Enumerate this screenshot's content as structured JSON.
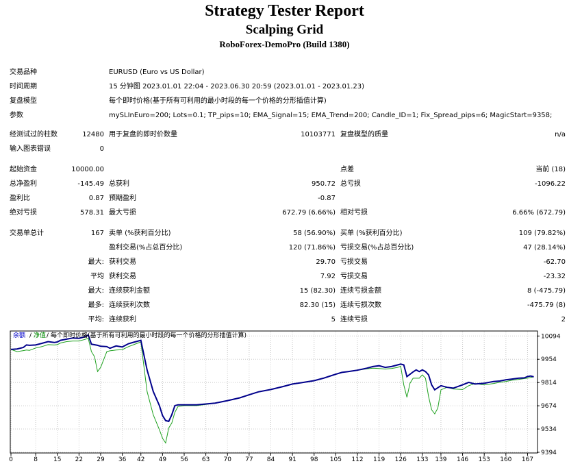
{
  "header": {
    "title": "Strategy Tester Report",
    "ea_name": "Scalping Grid",
    "server": "RoboForex-DemoPro (Build 1380)"
  },
  "info": {
    "symbol_label": "交易品种",
    "symbol_value": "EURUSD (Euro vs US Dollar)",
    "period_label": "时间周期",
    "period_value": "15 分钟图 2023.01.01 22:04 - 2023.06.30 20:59 (2023.01.01 - 2023.01.23)",
    "model_label": "复盘模型",
    "model_value": "每个即时价格(基于所有可利用的最小时段的每一个价格的分形插值计算)",
    "params_label": "参数",
    "params_value": "mySLInEuro=200; Lots=0.1; TP_pips=10; EMA_Signal=15; EMA_Trend=200; Candle_ID=1; Fix_Spread_pips=6; MagicStart=9358;"
  },
  "stats": {
    "bars_label": "经测试过的柱数",
    "bars_value": "12480",
    "ticks_label": "用于复盘的即时价数量",
    "ticks_value": "10103771",
    "quality_label": "复盘模型的质量",
    "quality_value": "n/a",
    "errors_label": "输入图表错误",
    "errors_value": "0",
    "deposit_label": "起始资金",
    "deposit_value": "10000.00",
    "spread_label": "点差",
    "spread_value": "当前 (18)",
    "net_label": "总净盈利",
    "net_value": "-145.49",
    "gross_profit_label": "总获利",
    "gross_profit_value": "950.72",
    "gross_loss_label": "总亏损",
    "gross_loss_value": "-1096.22",
    "pf_label": "盈利比",
    "pf_value": "0.87",
    "expected_label": "预期盈利",
    "expected_value": "-0.87",
    "abs_dd_label": "绝对亏损",
    "abs_dd_value": "578.31",
    "max_dd_label": "最大亏损",
    "max_dd_value": "672.79 (6.66%)",
    "rel_dd_label": "相对亏损",
    "rel_dd_value": "6.66% (672.79)",
    "trades_label": "交易单总计",
    "trades_value": "167",
    "short_label": "卖单 (%获利百分比)",
    "short_value": "58 (56.90%)",
    "long_label": "买单 (%获利百分比)",
    "long_value": "109 (79.82%)",
    "profit_trades_label": "盈利交易(%占总百分比)",
    "profit_trades_value": "120 (71.86%)",
    "loss_trades_label": "亏损交易(%占总百分比)",
    "loss_trades_value": "47 (28.14%)",
    "max_prefix": "最大:",
    "avg_prefix": "平均",
    "most_prefix": "最多:",
    "avg2_prefix": "平均:",
    "largest_profit_label": "获利交易",
    "largest_profit_value": "29.70",
    "largest_loss_label": "亏损交易",
    "largest_loss_value": "-62.70",
    "avg_profit_label": "获利交易",
    "avg_profit_value": "7.92",
    "avg_loss_label": "亏损交易",
    "avg_loss_value": "-23.32",
    "max_consec_wins_label": "连续获利金额",
    "max_consec_wins_value": "15 (82.30)",
    "max_consec_losses_label": "连续亏损金额",
    "max_consec_losses_value": "8 (-475.79)",
    "max_consec_profit_label": "连续获利次数",
    "max_consec_profit_value": "82.30 (15)",
    "max_consec_loss_label": "连续亏损次数",
    "max_consec_loss_value": "-475.79 (8)",
    "avg_consec_wins_label": "连续获利",
    "avg_consec_wins_value": "5",
    "avg_consec_losses_label": "连续亏损",
    "avg_consec_losses_value": "2"
  },
  "chart_legend": {
    "balance": "余额",
    "sep1": "/",
    "equity": "净值",
    "sep2": "/",
    "desc": "每个即时价格(基于所有可利用的最小时段的每一个价格的分形插值计算)"
  },
  "colors": {
    "balance": "#00008b",
    "equity": "#1ea01e",
    "legend_balance": "#0000cc",
    "legend_equity": "#008800"
  },
  "chart_data": {
    "type": "line",
    "x_ticks": [
      0,
      8,
      15,
      22,
      29,
      36,
      42,
      49,
      56,
      63,
      70,
      77,
      84,
      91,
      98,
      105,
      112,
      119,
      126,
      133,
      139,
      146,
      153,
      160,
      167
    ],
    "y_ticks": [
      10094,
      9954,
      9814,
      9674,
      9534,
      9394
    ],
    "xlim": [
      0,
      170
    ],
    "ylim": [
      9394,
      10120
    ],
    "series": [
      {
        "name": "余额",
        "x": [
          0,
          2,
          4,
          5,
          6,
          8,
          10,
          12,
          14,
          15,
          16,
          18,
          20,
          22,
          24,
          25,
          26,
          28,
          29,
          31,
          32,
          34,
          36,
          38,
          40,
          42,
          44,
          46,
          48,
          49,
          50,
          51,
          52,
          53,
          54,
          56,
          60,
          63,
          66,
          70,
          74,
          77,
          80,
          84,
          88,
          91,
          94,
          98,
          101,
          103,
          105,
          107,
          109,
          112,
          115,
          117,
          119,
          121,
          123,
          125,
          126,
          127,
          128,
          130,
          131,
          132,
          133,
          134,
          135,
          136,
          137,
          139,
          141,
          143,
          146,
          148,
          150,
          153,
          156,
          158,
          160,
          162,
          164,
          166,
          167,
          168,
          169
        ],
        "y": [
          10013,
          10016,
          10025,
          10040,
          10038,
          10040,
          10050,
          10060,
          10055,
          10058,
          10068,
          10075,
          10082,
          10080,
          10090,
          10100,
          10045,
          10038,
          10032,
          10030,
          10020,
          10034,
          10028,
          10048,
          10058,
          10068,
          9890,
          9760,
          9675,
          9615,
          9585,
          9580,
          9620,
          9675,
          9680,
          9680,
          9680,
          9685,
          9690,
          9705,
          9722,
          9740,
          9758,
          9772,
          9790,
          9805,
          9813,
          9825,
          9840,
          9852,
          9864,
          9875,
          9880,
          9888,
          9900,
          9910,
          9915,
          9905,
          9910,
          9920,
          9925,
          9920,
          9850,
          9878,
          9890,
          9880,
          9890,
          9880,
          9860,
          9800,
          9770,
          9795,
          9785,
          9780,
          9800,
          9815,
          9805,
          9810,
          9820,
          9823,
          9830,
          9835,
          9840,
          9842,
          9850,
          9853,
          9848
        ]
      },
      {
        "name": "净值",
        "x": [
          0,
          2,
          4,
          5,
          6,
          8,
          10,
          12,
          14,
          15,
          16,
          18,
          20,
          22,
          24,
          25,
          26,
          27,
          28,
          29,
          31,
          32,
          34,
          36,
          38,
          40,
          42,
          44,
          46,
          48,
          49,
          50,
          51,
          52,
          53,
          54,
          56,
          60,
          63,
          66,
          70,
          74,
          77,
          80,
          84,
          88,
          91,
          94,
          98,
          101,
          103,
          105,
          107,
          109,
          112,
          115,
          117,
          119,
          121,
          123,
          125,
          126,
          127,
          128,
          129,
          130,
          131,
          132,
          133,
          134,
          135,
          136,
          137,
          138,
          139,
          141,
          143,
          146,
          148,
          150,
          153,
          156,
          158,
          160,
          162,
          164,
          166,
          167,
          168,
          169
        ],
        "y": [
          10013,
          10000,
          10006,
          10010,
          10008,
          10022,
          10030,
          10042,
          10040,
          10042,
          10052,
          10060,
          10064,
          10064,
          10074,
          10080,
          10000,
          9970,
          9880,
          9905,
          10000,
          10005,
          10010,
          10012,
          10030,
          10044,
          10058,
          9760,
          9620,
          9530,
          9478,
          9450,
          9540,
          9570,
          9635,
          9670,
          9675,
          9675,
          9682,
          9690,
          9705,
          9722,
          9740,
          9758,
          9772,
          9790,
          9805,
          9813,
          9825,
          9840,
          9852,
          9864,
          9875,
          9880,
          9888,
          9896,
          9900,
          9898,
          9895,
          9898,
          9905,
          9912,
          9800,
          9725,
          9810,
          9840,
          9840,
          9840,
          9860,
          9840,
          9730,
          9650,
          9625,
          9660,
          9770,
          9785,
          9775,
          9772,
          9795,
          9808,
          9800,
          9808,
          9815,
          9820,
          9828,
          9832,
          9838,
          9840,
          9845,
          9848
        ]
      }
    ]
  }
}
